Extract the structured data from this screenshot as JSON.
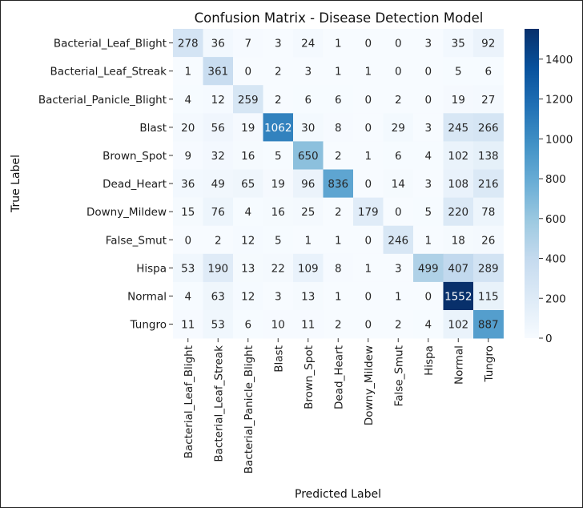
{
  "chart_data": {
    "type": "heatmap",
    "title": "Confusion Matrix - Disease Detection Model",
    "xlabel": "Predicted Label",
    "ylabel": "True Label",
    "row_labels": [
      "Bacterial_Leaf_Blight",
      "Bacterial_Leaf_Streak",
      "Bacterial_Panicle_Blight",
      "Blast",
      "Brown_Spot",
      "Dead_Heart",
      "Downy_Mildew",
      "False_Smut",
      "Hispa",
      "Normal",
      "Tungro"
    ],
    "col_labels": [
      "Bacterial_Leaf_Blight",
      "Bacterial_Leaf_Streak",
      "Bacterial_Panicle_Blight",
      "Blast",
      "Brown_Spot",
      "Dead_Heart",
      "Downy_Mildew",
      "False_Smut",
      "Hispa",
      "Normal",
      "Tungro"
    ],
    "values": [
      [
        278,
        36,
        7,
        3,
        24,
        1,
        0,
        0,
        3,
        35,
        92
      ],
      [
        1,
        361,
        0,
        2,
        3,
        1,
        1,
        0,
        0,
        5,
        6
      ],
      [
        4,
        12,
        259,
        2,
        6,
        6,
        0,
        2,
        0,
        19,
        27
      ],
      [
        20,
        56,
        19,
        1062,
        30,
        8,
        0,
        29,
        3,
        245,
        266
      ],
      [
        9,
        32,
        16,
        5,
        650,
        2,
        1,
        6,
        4,
        102,
        138
      ],
      [
        36,
        49,
        65,
        19,
        96,
        836,
        0,
        14,
        3,
        108,
        216
      ],
      [
        15,
        76,
        4,
        16,
        25,
        2,
        179,
        0,
        5,
        220,
        78
      ],
      [
        0,
        2,
        12,
        5,
        1,
        1,
        0,
        246,
        1,
        18,
        26
      ],
      [
        53,
        190,
        13,
        22,
        109,
        8,
        1,
        3,
        499,
        407,
        289
      ],
      [
        4,
        63,
        12,
        3,
        13,
        1,
        0,
        1,
        0,
        1552,
        115
      ],
      [
        11,
        53,
        6,
        10,
        11,
        2,
        0,
        2,
        4,
        102,
        887
      ]
    ],
    "colormap": "Blues",
    "colorbar": {
      "min": 0,
      "max": 1552,
      "ticks": [
        0,
        200,
        400,
        600,
        800,
        1000,
        1200,
        1400
      ]
    },
    "grid": false,
    "legend": "colorbar-right"
  }
}
